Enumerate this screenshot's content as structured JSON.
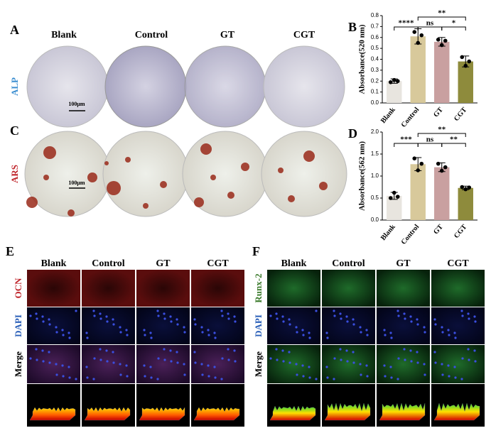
{
  "panels": {
    "A": {
      "label": "A",
      "row_label": "ALP",
      "columns": [
        "Blank",
        "Control",
        "GT",
        "CGT"
      ],
      "scale_bar": "100μm"
    },
    "C": {
      "label": "C",
      "row_label": "ARS",
      "scale_bar": "100μm"
    },
    "E": {
      "label": "E",
      "columns": [
        "Blank",
        "Control",
        "GT",
        "CGT"
      ],
      "rows": [
        "OCN",
        "DAPI",
        "Merge"
      ]
    },
    "F": {
      "label": "F",
      "columns": [
        "Blank",
        "Control",
        "GT",
        "CGT"
      ],
      "rows": [
        "Runx-2",
        "DAPI",
        "Merge"
      ]
    }
  },
  "chart_data": [
    {
      "type": "bar",
      "panel_label": "B",
      "ylabel": "Absorbance(520 nm)",
      "categories": [
        "Blank",
        "Control",
        "GT",
        "CGT"
      ],
      "values": [
        0.2,
        0.61,
        0.56,
        0.38
      ],
      "errors": [
        0.02,
        0.07,
        0.04,
        0.05
      ],
      "points": [
        [
          0.19,
          0.21,
          0.2
        ],
        [
          0.65,
          0.55,
          0.62
        ],
        [
          0.58,
          0.53,
          0.57
        ],
        [
          0.42,
          0.34,
          0.38
        ]
      ],
      "colors": [
        "#e8e5df",
        "#d8c99b",
        "#c9a0a0",
        "#8e8b3c"
      ],
      "ylim": [
        0,
        0.8
      ],
      "yticks": [
        {
          "value": 0,
          "label": "0.0"
        },
        0.1,
        0.2,
        0.3,
        0.4,
        0.5,
        0.6,
        0.7,
        0.8
      ],
      "annotations": [
        "****",
        "ns",
        "*",
        "**"
      ]
    },
    {
      "type": "bar",
      "panel_label": "D",
      "ylabel": "Absorbance(562 nm)",
      "categories": [
        "Blank",
        "Control",
        "GT",
        "CGT"
      ],
      "values": [
        0.55,
        1.27,
        1.2,
        0.73
      ],
      "errors": [
        0.08,
        0.15,
        0.1,
        0.04
      ],
      "points": [
        [
          0.5,
          0.62,
          0.53
        ],
        [
          1.4,
          1.13,
          1.28
        ],
        [
          1.28,
          1.12,
          1.2
        ],
        [
          0.75,
          0.7,
          0.74
        ]
      ],
      "colors": [
        "#e8e5df",
        "#d8c99b",
        "#c9a0a0",
        "#8e8b3c"
      ],
      "ylim": [
        0,
        2
      ],
      "yticks": [
        {
          "value": 0,
          "label": "0.0"
        },
        0.5,
        {
          "value": 1,
          "label": "1.0"
        },
        1.5,
        {
          "value": 2,
          "label": "2.0"
        }
      ],
      "annotations": [
        "***",
        "ns",
        "**",
        "**"
      ]
    }
  ]
}
